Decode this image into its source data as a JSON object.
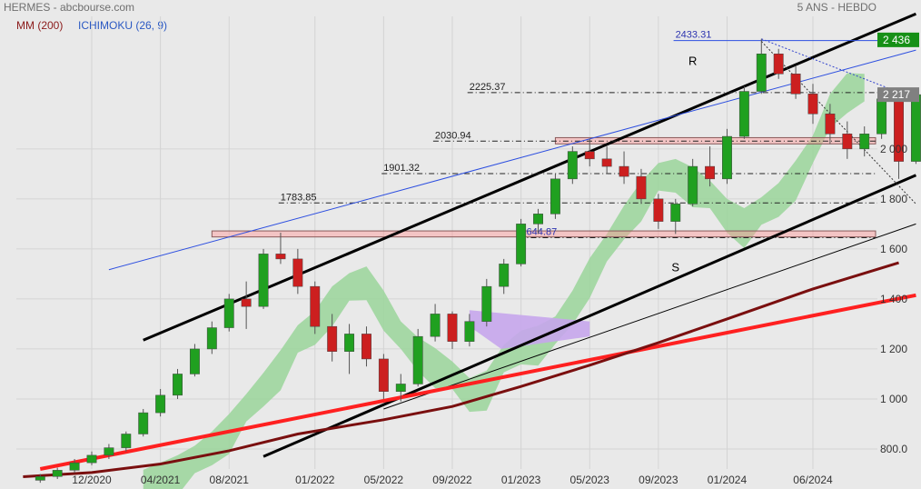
{
  "header": {
    "title": "HERMES - abcbourse.com",
    "period": "5 ANS - HEBDO",
    "indicator_mm": "MM (200)",
    "indicator_ichimoku": "ICHIMOKU (26, 9)"
  },
  "colors": {
    "background": "#e9e9e9",
    "candle_up": "#20a020",
    "candle_down": "#cc1f1f",
    "mm200": "#7a0f0f",
    "ichimoku_line": "#2d4fe0",
    "cloud_green": "#9ad59a",
    "cloud_purple": "#c6a6ec",
    "channel": "#000000",
    "trend_red": "#ff2020",
    "price_tag_last": "#808080",
    "price_tag_high": "#169016"
  },
  "chart_data": {
    "type": "candlestick",
    "x_axis": {
      "tick_labels": [
        "12/2020",
        "04/2021",
        "08/2021",
        "01/2022",
        "05/2022",
        "09/2022",
        "01/2023",
        "05/2023",
        "09/2023",
        "01/2024",
        "06/2024"
      ],
      "tick_dates": [
        "2020-12",
        "2021-04",
        "2021-08",
        "2022-01",
        "2022-05",
        "2022-09",
        "2023-01",
        "2023-05",
        "2023-09",
        "2024-01",
        "2024-06"
      ]
    },
    "y_axis": {
      "range": [
        720,
        2530
      ],
      "tick_labels": [
        "800.0",
        "1 000",
        "1 200",
        "1 400",
        "1 600",
        "1 800",
        "2 000"
      ],
      "tick_values": [
        800,
        1000,
        1200,
        1400,
        1600,
        1800,
        2000
      ]
    },
    "price_tags": [
      {
        "label": "2 436",
        "value": 2436,
        "kind": "high"
      },
      {
        "label": "2 217",
        "value": 2217,
        "kind": "last"
      }
    ],
    "horizontal_levels": [
      {
        "label": "2433.31",
        "value": 2433.31,
        "start": "2023-12"
      },
      {
        "label": "2225.37",
        "value": 2225.37,
        "start": "2022-12"
      },
      {
        "label": "2030.94",
        "value": 2030.94,
        "start": "2022-10"
      },
      {
        "label": "1901.32",
        "value": 1901.32,
        "start": "2022-07"
      },
      {
        "label": "1783.85",
        "value": 1783.85,
        "start": "2022-01"
      },
      {
        "label": "1644.87",
        "value": 1644.87,
        "start": "2023-03"
      }
    ],
    "zones": [
      {
        "low": 1648,
        "high": 1672,
        "start": "2021-07",
        "end": "2024-12"
      },
      {
        "low": 2020,
        "high": 2045,
        "start": "2023-03",
        "end": "2024-11"
      }
    ],
    "annotations": [
      {
        "text": "R",
        "date": "2023-11",
        "value": 2335
      },
      {
        "text": "S",
        "date": "2023-10",
        "value": 1510
      }
    ],
    "series": [
      {
        "name": "MM (200)",
        "points": [
          [
            "2020-08",
            689
          ],
          [
            "2020-12",
            706
          ],
          [
            "2021-04",
            740
          ],
          [
            "2021-08",
            793
          ],
          [
            "2021-12",
            860
          ],
          [
            "2022-05",
            917
          ],
          [
            "2022-09",
            970
          ],
          [
            "2023-01",
            1050
          ],
          [
            "2023-05",
            1135
          ],
          [
            "2023-09",
            1225
          ],
          [
            "2024-01",
            1320
          ],
          [
            "2024-06",
            1440
          ],
          [
            "2024-11",
            1545
          ]
        ]
      },
      {
        "name": "ICHIMOKU (26, 9)",
        "points": [
          [
            "2021-01",
            1517
          ],
          [
            "2024-12",
            2395
          ]
        ]
      }
    ],
    "ohlc": [
      [
        "2020-09",
        675,
        700,
        665,
        690
      ],
      [
        "2020-10",
        690,
        725,
        680,
        715
      ],
      [
        "2020-11",
        715,
        760,
        705,
        745
      ],
      [
        "2020-12",
        745,
        790,
        735,
        775
      ],
      [
        "2021-01",
        775,
        820,
        760,
        805
      ],
      [
        "2021-02",
        805,
        870,
        790,
        860
      ],
      [
        "2021-03",
        860,
        960,
        850,
        945
      ],
      [
        "2021-04",
        945,
        1040,
        930,
        1015
      ],
      [
        "2021-05",
        1015,
        1120,
        1000,
        1100
      ],
      [
        "2021-06",
        1100,
        1220,
        1090,
        1200
      ],
      [
        "2021-07",
        1200,
        1310,
        1180,
        1285
      ],
      [
        "2021-08",
        1285,
        1420,
        1270,
        1400
      ],
      [
        "2021-09",
        1400,
        1470,
        1280,
        1370
      ],
      [
        "2021-10",
        1370,
        1600,
        1360,
        1580
      ],
      [
        "2021-11",
        1580,
        1665,
        1540,
        1560
      ],
      [
        "2021-12",
        1560,
        1600,
        1420,
        1450
      ],
      [
        "2022-01",
        1450,
        1470,
        1260,
        1290
      ],
      [
        "2022-02",
        1290,
        1340,
        1150,
        1190
      ],
      [
        "2022-03",
        1190,
        1300,
        1100,
        1260
      ],
      [
        "2022-04",
        1260,
        1290,
        1130,
        1160
      ],
      [
        "2022-05",
        1160,
        1180,
        1000,
        1030
      ],
      [
        "2022-06",
        1030,
        1100,
        990,
        1060
      ],
      [
        "2022-07",
        1060,
        1280,
        1050,
        1250
      ],
      [
        "2022-08",
        1250,
        1380,
        1230,
        1340
      ],
      [
        "2022-09",
        1340,
        1350,
        1200,
        1230
      ],
      [
        "2022-10",
        1230,
        1340,
        1210,
        1310
      ],
      [
        "2022-11",
        1310,
        1480,
        1290,
        1450
      ],
      [
        "2022-12",
        1450,
        1560,
        1420,
        1540
      ],
      [
        "2023-01",
        1540,
        1720,
        1530,
        1700
      ],
      [
        "2023-02",
        1700,
        1760,
        1660,
        1740
      ],
      [
        "2023-03",
        1740,
        1900,
        1720,
        1880
      ],
      [
        "2023-04",
        1880,
        2010,
        1860,
        1990
      ],
      [
        "2023-05",
        1990,
        2040,
        1930,
        1960
      ],
      [
        "2023-06",
        1960,
        2010,
        1900,
        1930
      ],
      [
        "2023-07",
        1930,
        1990,
        1860,
        1890
      ],
      [
        "2023-08",
        1890,
        1920,
        1780,
        1800
      ],
      [
        "2023-09",
        1800,
        1820,
        1680,
        1710
      ],
      [
        "2023-10",
        1710,
        1800,
        1660,
        1780
      ],
      [
        "2023-11",
        1780,
        1960,
        1770,
        1930
      ],
      [
        "2023-12",
        1930,
        2010,
        1850,
        1880
      ],
      [
        "2024-01",
        1880,
        2080,
        1860,
        2050
      ],
      [
        "2024-02",
        2050,
        2250,
        2040,
        2230
      ],
      [
        "2024-03",
        2230,
        2440,
        2220,
        2380
      ],
      [
        "2024-04",
        2380,
        2400,
        2280,
        2300
      ],
      [
        "2024-05",
        2300,
        2330,
        2200,
        2220
      ],
      [
        "2024-06",
        2220,
        2260,
        2100,
        2140
      ],
      [
        "2024-07",
        2140,
        2180,
        2020,
        2060
      ],
      [
        "2024-08",
        2060,
        2110,
        1960,
        2000
      ],
      [
        "2024-09",
        2000,
        2090,
        1970,
        2060
      ],
      [
        "2024-10",
        2060,
        2230,
        2040,
        2200
      ],
      [
        "2024-11",
        2200,
        2230,
        1880,
        1950
      ],
      [
        "2024-12",
        1950,
        2230,
        1940,
        2217
      ]
    ]
  }
}
